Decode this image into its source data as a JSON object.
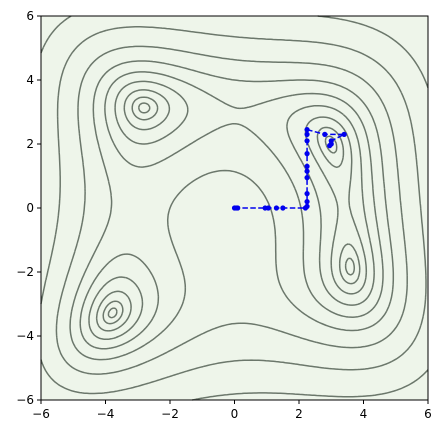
{
  "chart_data": {
    "type": "contour",
    "levels": [
      1,
      5,
      15,
      35,
      70,
      130,
      250,
      500,
      1000
    ],
    "contour_color": "#6b776b",
    "path": {
      "color": "#0000ee",
      "x": [
        0,
        0.05,
        0.1,
        0.95,
        1.05,
        1.3,
        1.5,
        2.2,
        2.25,
        2.25,
        2.25,
        2.25,
        2.25,
        2.25,
        2.25,
        2.25,
        2.25,
        2.25,
        2.8,
        3.4,
        3.0,
        3.0,
        2.95
      ],
      "y": [
        0,
        0,
        0,
        0,
        0,
        0,
        0,
        0,
        0.05,
        0.2,
        0.45,
        0.95,
        1.15,
        1.3,
        1.7,
        2.1,
        2.3,
        2.45,
        2.3,
        2.3,
        2.1,
        2.0,
        1.95
      ]
    },
    "xlim": [
      -6,
      6
    ],
    "ylim": [
      -6,
      6
    ],
    "xticks": [
      {
        "value": -6,
        "label": "−6"
      },
      {
        "value": -4,
        "label": "−4"
      },
      {
        "value": -2,
        "label": "−2"
      },
      0,
      2,
      4,
      6
    ],
    "yticks": [
      {
        "value": -6,
        "label": "−6"
      },
      {
        "value": -4,
        "label": "−4"
      },
      {
        "value": -2,
        "label": "−2"
      },
      0,
      2,
      4,
      6
    ]
  }
}
